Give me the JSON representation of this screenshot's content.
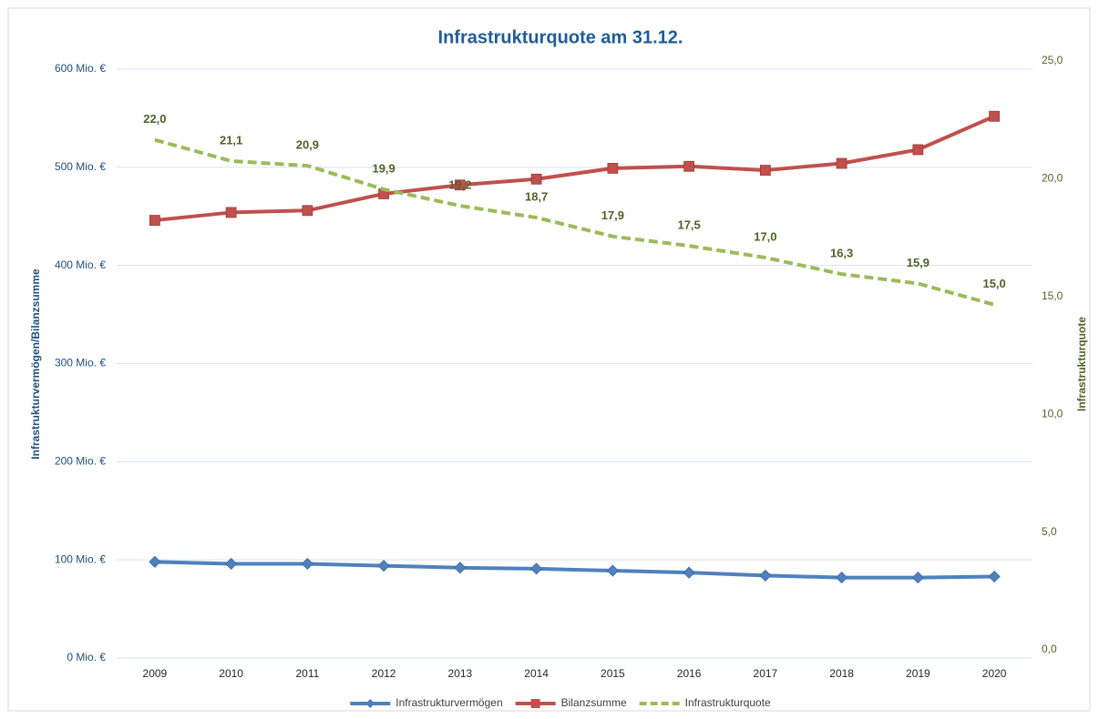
{
  "chart_data": {
    "type": "line",
    "title": "Infrastrukturquote am 31.12.",
    "ylabel": "Infrastrukturvermögen/Bilanzsumme",
    "y2label": "Infrastrukturquote",
    "categories": [
      "2009",
      "2010",
      "2011",
      "2012",
      "2013",
      "2014",
      "2015",
      "2016",
      "2017",
      "2018",
      "2019",
      "2020"
    ],
    "ylim": [
      0,
      600
    ],
    "yticks": [
      {
        "value": 0,
        "label": "0 Mio. €"
      },
      {
        "value": 100,
        "label": "100 Mio. €"
      },
      {
        "value": 200,
        "label": "200 Mio. €"
      },
      {
        "value": 300,
        "label": "300 Mio. €"
      },
      {
        "value": 400,
        "label": "400 Mio. €"
      },
      {
        "value": 500,
        "label": "500 Mio. €"
      },
      {
        "value": 600,
        "label": "600 Mio. €"
      }
    ],
    "y2lim": [
      0,
      25
    ],
    "y2ticks": [
      {
        "value": 0,
        "label": "0,0"
      },
      {
        "value": 5,
        "label": "5,0"
      },
      {
        "value": 10,
        "label": "10,0"
      },
      {
        "value": 15,
        "label": "15,0"
      },
      {
        "value": 20,
        "label": "20,0"
      },
      {
        "value": 25,
        "label": "25,0"
      }
    ],
    "grid": true,
    "legend": "bottom",
    "series": [
      {
        "name": "Infrastrukturvermögen",
        "color": "#4f81bd",
        "marker": "diamond",
        "values": [
          98,
          96,
          96,
          94,
          92,
          91,
          89,
          87,
          84,
          82,
          82,
          83
        ]
      },
      {
        "name": "Bilanzsumme",
        "color": "#c0504d",
        "marker": "square",
        "values": [
          446,
          454,
          456,
          473,
          482,
          488,
          499,
          501,
          497,
          504,
          518,
          552
        ]
      },
      {
        "name": "Infrastrukturquote",
        "color": "#9bbb59",
        "line_style": "dashed",
        "axis": "y2",
        "values": [
          22.0,
          21.1,
          20.9,
          19.9,
          19.2,
          18.7,
          17.9,
          17.5,
          17.0,
          16.3,
          15.9,
          15.0
        ],
        "value_labels": [
          "22,0",
          "21,1",
          "20,9",
          "19,9",
          "19,2",
          "18,7",
          "17,9",
          "17,5",
          "17,0",
          "16,3",
          "15,9",
          "15,0"
        ]
      }
    ]
  }
}
